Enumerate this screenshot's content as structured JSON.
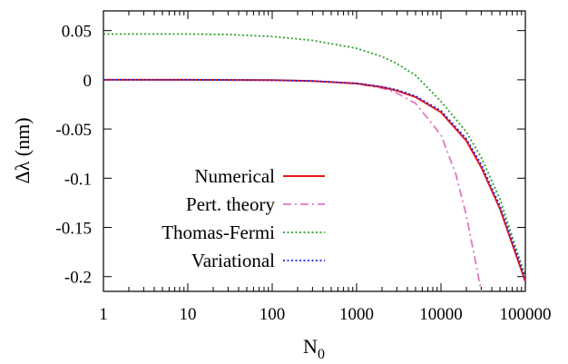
{
  "chart_data": {
    "type": "line",
    "xlabel_main": "N",
    "xlabel_sub": "0",
    "ylabel": "Δλ (nm)",
    "xscale": "log",
    "xlim": [
      1,
      100000
    ],
    "ylim": [
      -0.215,
      0.07
    ],
    "x_ticks": [
      1,
      10,
      100,
      1000,
      10000,
      100000
    ],
    "x_tick_labels": [
      "1",
      "10",
      "100",
      "1000",
      "10000",
      "100000"
    ],
    "y_ticks": [
      0.05,
      0,
      -0.05,
      -0.1,
      -0.15,
      -0.2
    ],
    "y_tick_labels": [
      "0.05",
      "0",
      "-0.05",
      "-0.1",
      "-0.15",
      "-0.2"
    ],
    "grid": false,
    "legend_position": "center-left",
    "series": [
      {
        "name": "Numerical",
        "color": "#e41a1c",
        "style": "solid",
        "x": [
          1,
          10,
          100,
          300,
          1000,
          2000,
          3000,
          5000,
          10000,
          20000,
          30000,
          50000,
          100000
        ],
        "y": [
          0,
          0,
          -0.0004,
          -0.0012,
          -0.0038,
          -0.0075,
          -0.011,
          -0.0175,
          -0.033,
          -0.062,
          -0.089,
          -0.131,
          -0.205
        ]
      },
      {
        "name": "Pert. theory",
        "color": "#e377c2",
        "style": "dash-dot",
        "x": [
          1,
          10,
          100,
          300,
          1000,
          2000,
          3000,
          5000,
          10000,
          15000,
          20000,
          25000,
          30000
        ],
        "y": [
          0,
          0,
          -0.0004,
          -0.0012,
          -0.004,
          -0.0085,
          -0.0135,
          -0.024,
          -0.056,
          -0.096,
          -0.138,
          -0.18,
          -0.215
        ]
      },
      {
        "name": "Thomas-Fermi",
        "color": "#2ca02c",
        "style": "dotted",
        "x": [
          1,
          10,
          30,
          100,
          300,
          1000,
          2000,
          3000,
          5000,
          10000,
          20000,
          30000,
          50000,
          100000
        ],
        "y": [
          0.0465,
          0.0465,
          0.046,
          0.044,
          0.04,
          0.032,
          0.0235,
          0.0165,
          0.0045,
          -0.022,
          -0.053,
          -0.079,
          -0.121,
          -0.2
        ]
      },
      {
        "name": "Variational",
        "color": "#2323e6",
        "style": "dotted",
        "x": [
          1,
          10,
          100,
          300,
          1000,
          2000,
          3000,
          5000,
          10000,
          20000,
          30000,
          50000,
          100000
        ],
        "y": [
          0,
          0,
          -0.0004,
          -0.0012,
          -0.0035,
          -0.007,
          -0.0102,
          -0.0165,
          -0.0315,
          -0.06,
          -0.086,
          -0.128,
          -0.202
        ]
      }
    ]
  }
}
